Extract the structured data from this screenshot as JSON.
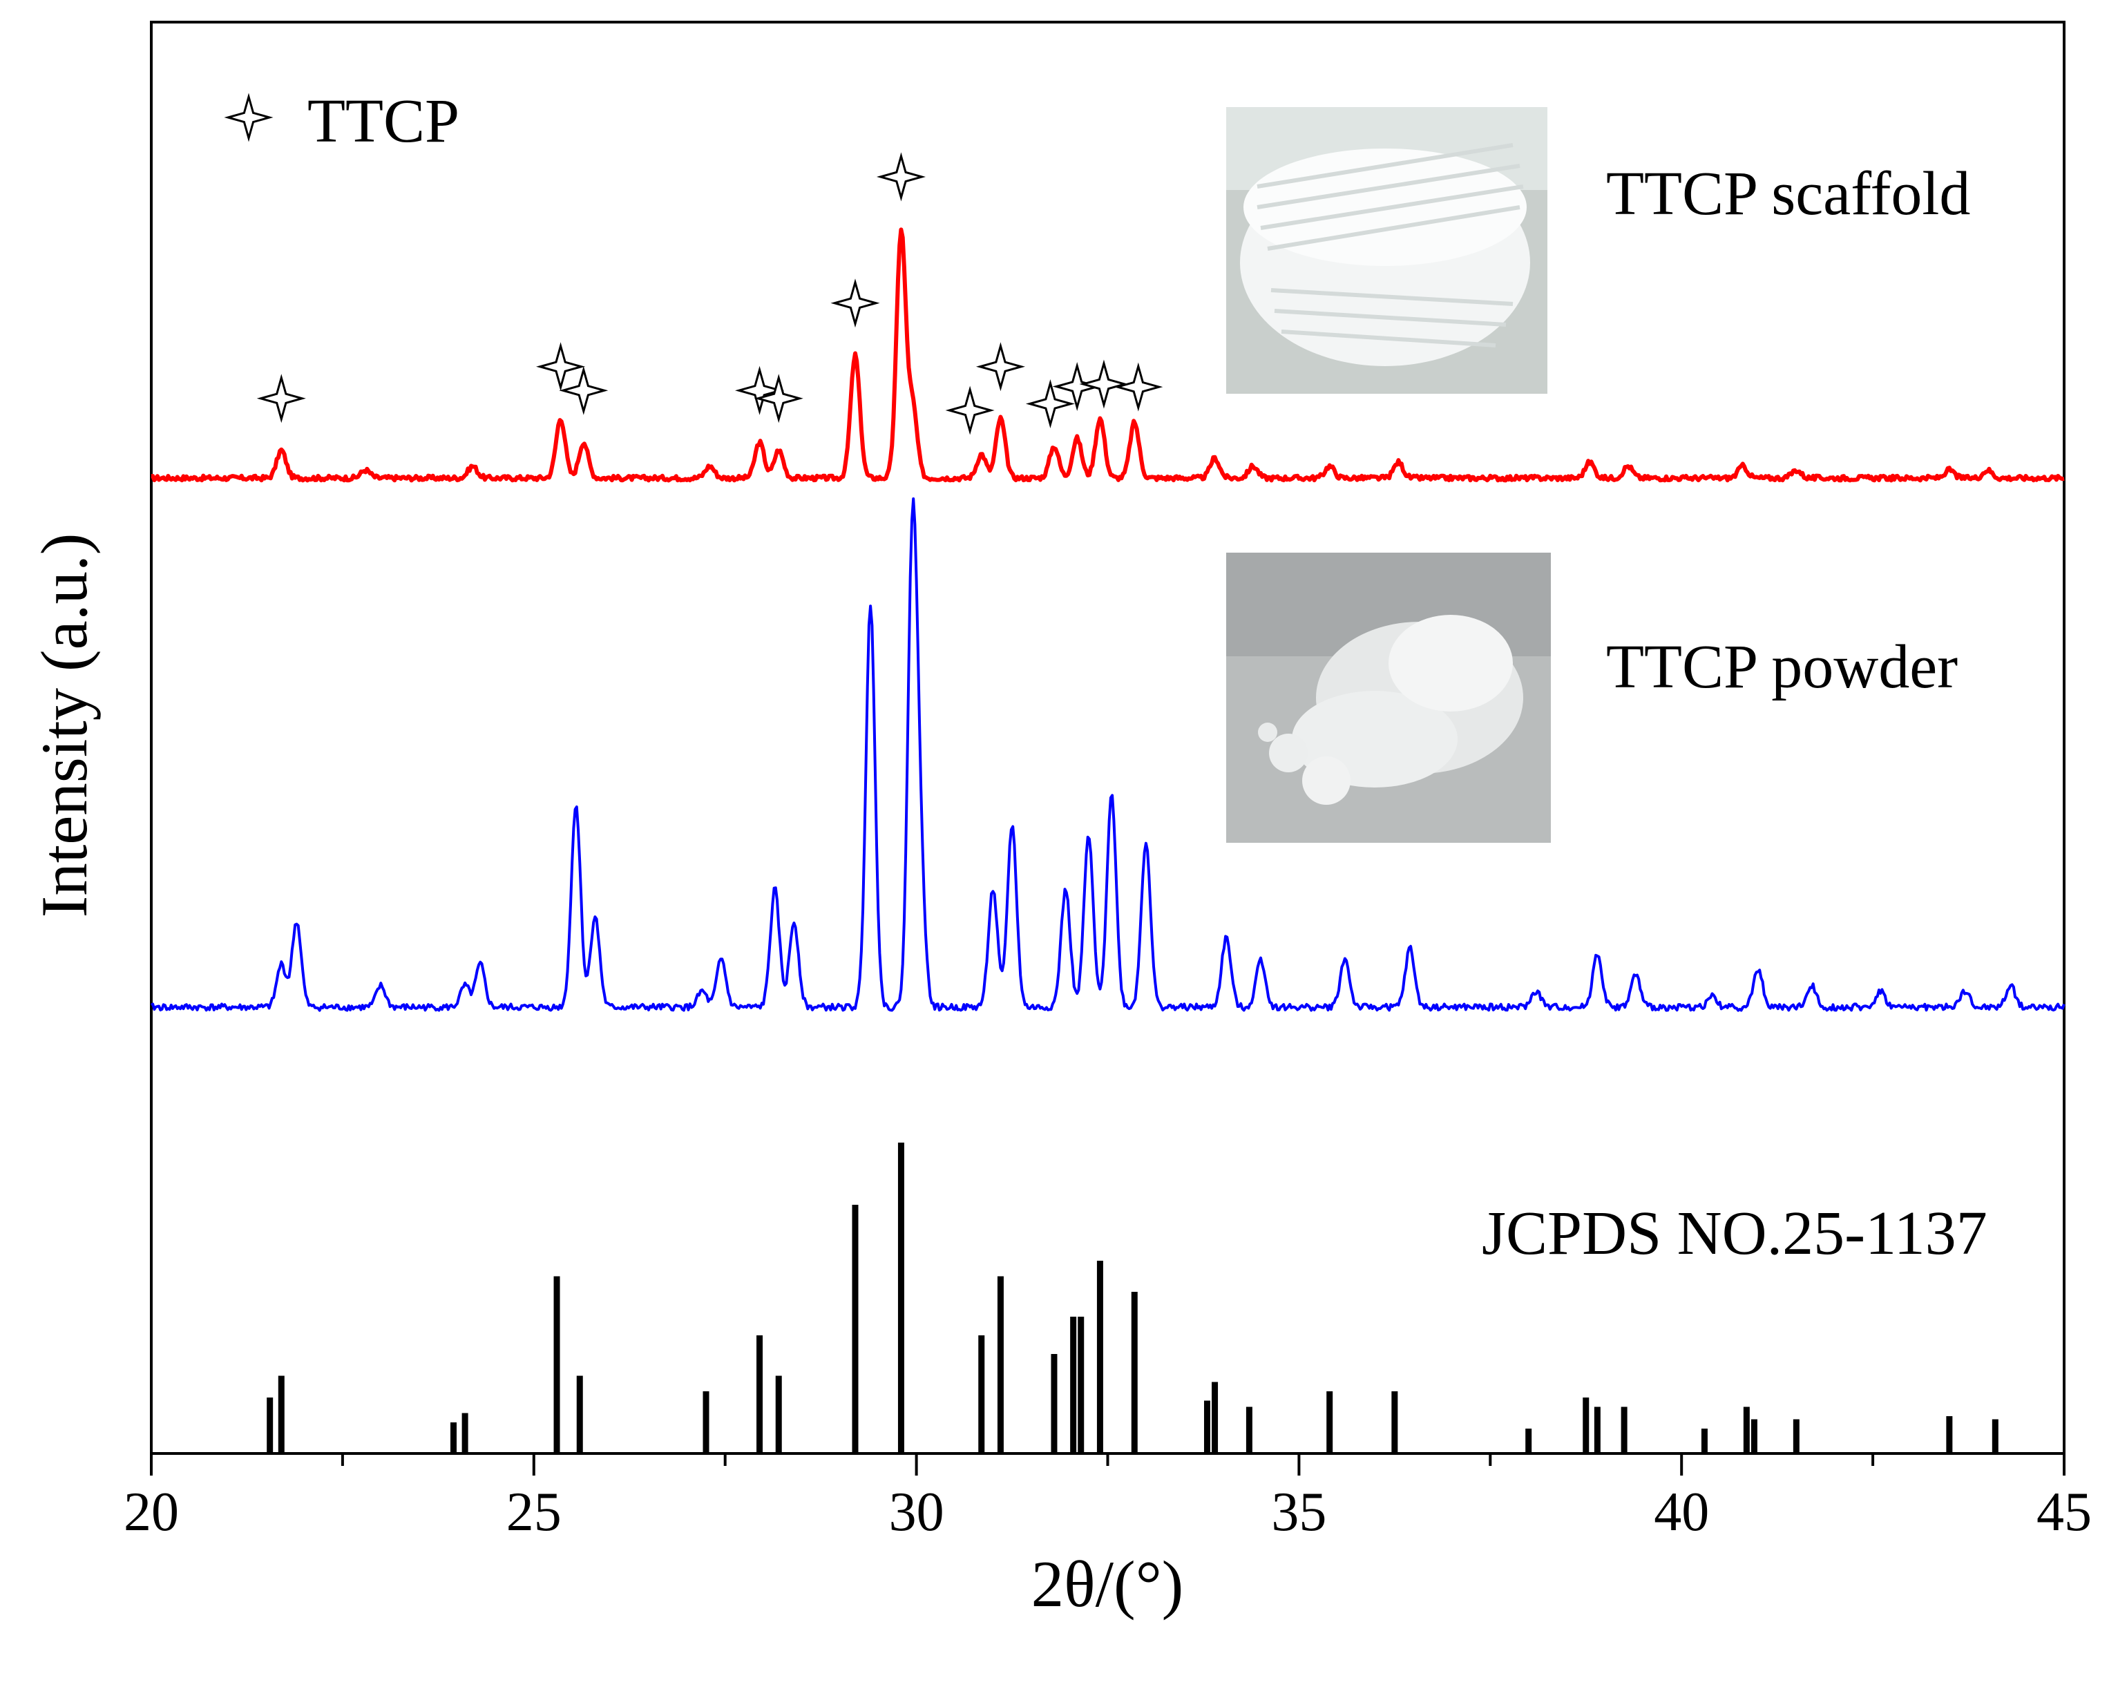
{
  "chart_data": {
    "type": "line",
    "title": "",
    "xlabel": "2θ/(°)",
    "ylabel": "Intensity (a.u.)",
    "xlim": [
      20,
      45
    ],
    "xticks": [
      20,
      25,
      30,
      35,
      40,
      45
    ],
    "xtick_labels": [
      "20",
      "25",
      "30",
      "35",
      "40",
      "45"
    ],
    "grid": false,
    "legend": {
      "marker": "✧",
      "label": "TTCP",
      "placement": "top-left"
    },
    "series": [
      {
        "name": "TTCP scaffold",
        "label": "TTCP scaffold",
        "color": "#ff0000",
        "inset_image": "photo of white 3D-printed porous scaffold",
        "peaks": [
          {
            "x": 21.7,
            "h": 0.07
          },
          {
            "x": 22.8,
            "h": 0.02
          },
          {
            "x": 24.2,
            "h": 0.03
          },
          {
            "x": 25.35,
            "h": 0.15
          },
          {
            "x": 25.65,
            "h": 0.09
          },
          {
            "x": 27.3,
            "h": 0.03
          },
          {
            "x": 27.95,
            "h": 0.09
          },
          {
            "x": 28.2,
            "h": 0.07
          },
          {
            "x": 29.2,
            "h": 0.31
          },
          {
            "x": 29.8,
            "h": 0.62
          },
          {
            "x": 29.95,
            "h": 0.18
          },
          {
            "x": 30.85,
            "h": 0.06
          },
          {
            "x": 31.1,
            "h": 0.15
          },
          {
            "x": 31.8,
            "h": 0.08
          },
          {
            "x": 32.1,
            "h": 0.1
          },
          {
            "x": 32.4,
            "h": 0.15
          },
          {
            "x": 32.85,
            "h": 0.14
          },
          {
            "x": 33.9,
            "h": 0.05
          },
          {
            "x": 34.4,
            "h": 0.03
          },
          {
            "x": 35.4,
            "h": 0.03
          },
          {
            "x": 36.3,
            "h": 0.04
          },
          {
            "x": 38.8,
            "h": 0.04
          },
          {
            "x": 39.3,
            "h": 0.03
          },
          {
            "x": 40.8,
            "h": 0.03
          },
          {
            "x": 41.5,
            "h": 0.02
          },
          {
            "x": 43.5,
            "h": 0.02
          },
          {
            "x": 44.0,
            "h": 0.02
          }
        ],
        "star_markers_x": [
          21.7,
          25.35,
          25.65,
          27.95,
          28.2,
          29.2,
          29.8,
          30.7,
          31.1,
          31.75,
          32.1,
          32.45,
          32.9
        ]
      },
      {
        "name": "TTCP powder",
        "label": "TTCP powder",
        "color": "#0000ff",
        "inset_image": "photo of white TTCP powder",
        "peaks": [
          {
            "x": 21.7,
            "h": 0.08
          },
          {
            "x": 21.9,
            "h": 0.16
          },
          {
            "x": 23.0,
            "h": 0.04
          },
          {
            "x": 24.1,
            "h": 0.04
          },
          {
            "x": 24.3,
            "h": 0.08
          },
          {
            "x": 25.55,
            "h": 0.38
          },
          {
            "x": 25.8,
            "h": 0.17
          },
          {
            "x": 27.2,
            "h": 0.03
          },
          {
            "x": 27.45,
            "h": 0.09
          },
          {
            "x": 28.15,
            "h": 0.22
          },
          {
            "x": 28.4,
            "h": 0.16
          },
          {
            "x": 29.4,
            "h": 0.75
          },
          {
            "x": 29.95,
            "h": 0.88
          },
          {
            "x": 30.05,
            "h": 0.25
          },
          {
            "x": 31.0,
            "h": 0.22
          },
          {
            "x": 31.25,
            "h": 0.34
          },
          {
            "x": 31.95,
            "h": 0.22
          },
          {
            "x": 32.25,
            "h": 0.32
          },
          {
            "x": 32.55,
            "h": 0.4
          },
          {
            "x": 33.0,
            "h": 0.31
          },
          {
            "x": 34.05,
            "h": 0.13
          },
          {
            "x": 34.5,
            "h": 0.09
          },
          {
            "x": 35.6,
            "h": 0.09
          },
          {
            "x": 36.45,
            "h": 0.11
          },
          {
            "x": 38.1,
            "h": 0.03
          },
          {
            "x": 38.9,
            "h": 0.1
          },
          {
            "x": 39.4,
            "h": 0.06
          },
          {
            "x": 40.4,
            "h": 0.02
          },
          {
            "x": 41.0,
            "h": 0.07
          },
          {
            "x": 41.7,
            "h": 0.04
          },
          {
            "x": 42.6,
            "h": 0.03
          },
          {
            "x": 43.7,
            "h": 0.03
          },
          {
            "x": 44.3,
            "h": 0.04
          }
        ]
      },
      {
        "name": "JCPDS NO.25-1137",
        "label": "JCPDS NO.25-1137",
        "color": "#000000",
        "type": "stick",
        "sticks": [
          {
            "x": 21.55,
            "h": 18
          },
          {
            "x": 21.7,
            "h": 25
          },
          {
            "x": 23.95,
            "h": 10
          },
          {
            "x": 24.1,
            "h": 13
          },
          {
            "x": 25.3,
            "h": 57
          },
          {
            "x": 25.6,
            "h": 25
          },
          {
            "x": 27.25,
            "h": 20
          },
          {
            "x": 27.95,
            "h": 38
          },
          {
            "x": 28.2,
            "h": 25
          },
          {
            "x": 29.2,
            "h": 80
          },
          {
            "x": 29.8,
            "h": 100
          },
          {
            "x": 30.85,
            "h": 38
          },
          {
            "x": 31.1,
            "h": 57
          },
          {
            "x": 31.8,
            "h": 32
          },
          {
            "x": 32.05,
            "h": 44
          },
          {
            "x": 32.15,
            "h": 44
          },
          {
            "x": 32.4,
            "h": 62
          },
          {
            "x": 32.85,
            "h": 52
          },
          {
            "x": 33.8,
            "h": 17
          },
          {
            "x": 33.9,
            "h": 23
          },
          {
            "x": 34.35,
            "h": 15
          },
          {
            "x": 35.4,
            "h": 20
          },
          {
            "x": 36.25,
            "h": 20
          },
          {
            "x": 38.0,
            "h": 8
          },
          {
            "x": 38.75,
            "h": 18
          },
          {
            "x": 38.9,
            "h": 15
          },
          {
            "x": 39.25,
            "h": 15
          },
          {
            "x": 40.3,
            "h": 8
          },
          {
            "x": 40.85,
            "h": 15
          },
          {
            "x": 40.95,
            "h": 11
          },
          {
            "x": 41.5,
            "h": 11
          },
          {
            "x": 43.5,
            "h": 12
          },
          {
            "x": 44.1,
            "h": 11
          }
        ]
      }
    ]
  }
}
